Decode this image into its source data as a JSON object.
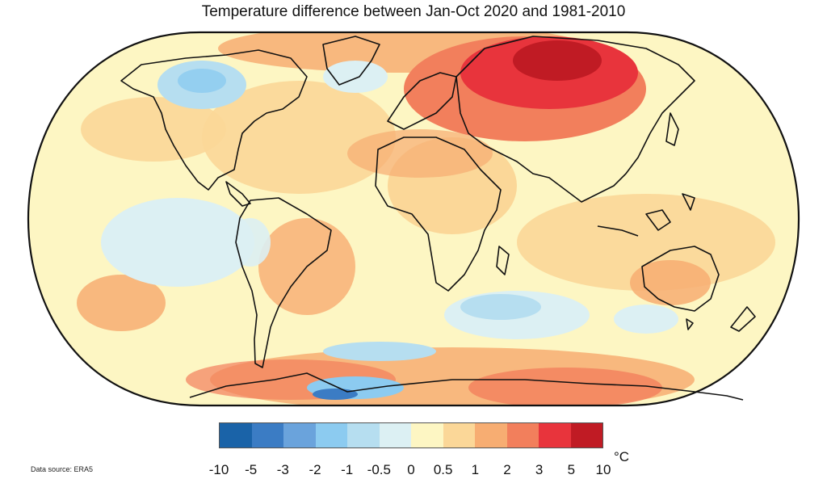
{
  "title": "Temperature difference between Jan-Oct 2020 and 1981-2010",
  "legend": {
    "unit": "°C",
    "ticks": [
      "-10",
      "-5",
      "-3",
      "-2",
      "-1",
      "-0.5",
      "0",
      "0.5",
      "1",
      "2",
      "3",
      "5",
      "10"
    ],
    "colors": [
      "#1a63a8",
      "#3b7cc4",
      "#6aa3dc",
      "#8ccbf0",
      "#b6def0",
      "#dcf0f3",
      "#fdf6c3",
      "#fbd798",
      "#f7ad72",
      "#f27f5c",
      "#e8343c",
      "#c01b24"
    ]
  },
  "source": "Data source: ERA5",
  "colors": {
    "ocean_base": "#fdf6c3",
    "coastline": "#111111",
    "frame": "#111111"
  }
}
